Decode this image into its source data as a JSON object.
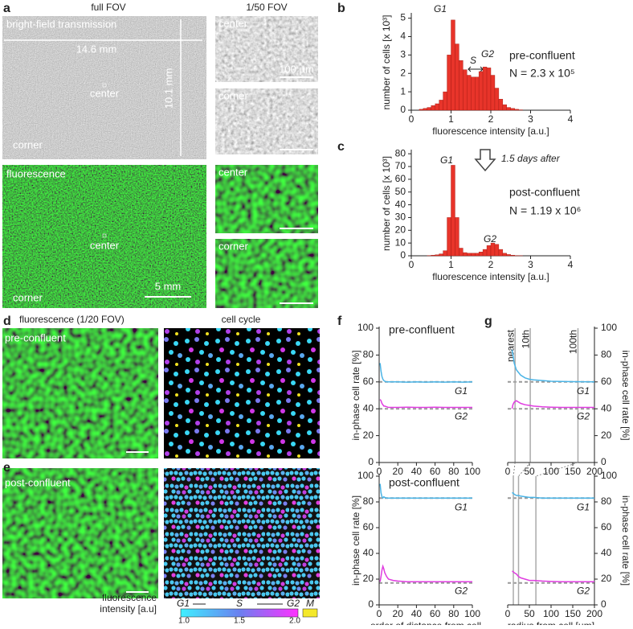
{
  "panel_a": {
    "label": "a",
    "full_fov": "full FOV",
    "small_fov": "1/50 FOV",
    "bright_field": "bright-field transmission",
    "width": "14.6 mm",
    "height": "10.1 mm",
    "center": "center",
    "corner": "corner",
    "fluorescence": "fluorescence",
    "scale_bar": "5 mm",
    "small_scale_bar": "100 µm"
  },
  "panel_d": {
    "label": "d",
    "fluorescence": "fluorescence (1/20 FOV)",
    "cell_cycle": "cell cycle",
    "condition": "pre-confluent"
  },
  "panel_e": {
    "label": "e",
    "condition": "post-confluent"
  },
  "colorbar": {
    "title": [
      "fluorescence",
      "intensity [a.u]"
    ],
    "phases": [
      "G1",
      "S",
      "G2"
    ],
    "m": "M",
    "ticks": [
      "1.0",
      "1.5",
      "2.0"
    ]
  },
  "chart_data": [
    {
      "type": "histogram",
      "panel": "b",
      "x_label": "fluorescence intensity [a.u.]",
      "y_label": "number of cells [x 10³]",
      "color": "#e8342a",
      "annotations": [
        "G1",
        "S",
        "G2"
      ],
      "condition": "pre-confluent",
      "n": "N = 2.3 x 10⁵",
      "bins": [
        0.2,
        0.3,
        0.4,
        0.5,
        0.6,
        0.7,
        0.8,
        0.9,
        1.0,
        1.1,
        1.2,
        1.3,
        1.4,
        1.5,
        1.6,
        1.7,
        1.8,
        1.9,
        2.0,
        2.1,
        2.2,
        2.3,
        2.4,
        2.5,
        2.6,
        2.7,
        2.8
      ],
      "values": [
        0.05,
        0.1,
        0.15,
        0.25,
        0.35,
        0.55,
        1.0,
        3.0,
        4.9,
        3.6,
        2.7,
        2.2,
        1.9,
        1.8,
        1.8,
        2.1,
        2.35,
        2.3,
        1.9,
        1.2,
        0.6,
        0.3,
        0.15,
        0.1,
        0.05,
        0.02
      ],
      "xlim": [
        0,
        4
      ],
      "xticks": [
        0,
        1,
        2,
        3,
        4
      ],
      "ylim": [
        0,
        5.2
      ],
      "yticks": [
        0,
        1,
        2,
        3,
        4,
        5
      ]
    },
    {
      "type": "histogram",
      "panel": "c",
      "x_label": "fluorescence intensity [a.u.]",
      "y_label": "number of cells [x 10³]",
      "color": "#e8342a",
      "annotations": [
        "G1",
        "G2"
      ],
      "caption": "1.5 days after",
      "condition": "post-confluent",
      "n": "N = 1.19 x 10⁶",
      "bins": [
        0.2,
        0.3,
        0.4,
        0.5,
        0.6,
        0.7,
        0.8,
        0.9,
        1.0,
        1.1,
        1.2,
        1.3,
        1.4,
        1.5,
        1.6,
        1.7,
        1.8,
        1.9,
        2.0,
        2.1,
        2.2,
        2.3,
        2.4,
        2.5,
        2.6,
        2.7,
        2.8
      ],
      "values": [
        0,
        0,
        0.2,
        0.5,
        0.8,
        1.5,
        4,
        30,
        71,
        30,
        6,
        2.5,
        2,
        2,
        2,
        3,
        5,
        8,
        10,
        9,
        5,
        2,
        1,
        0.5,
        0.2,
        0.1
      ],
      "xlim": [
        0,
        4
      ],
      "xticks": [
        0,
        1,
        2,
        3,
        4
      ],
      "ylim": [
        0,
        82
      ],
      "yticks": [
        0,
        10,
        20,
        30,
        40,
        50,
        60,
        70,
        80
      ]
    },
    {
      "type": "line",
      "panel": "f",
      "condition": "pre-confluent",
      "y_label": "in-phase cell rate [%]",
      "x": [
        1,
        2,
        3,
        4,
        5,
        6,
        8,
        10,
        15,
        20,
        30,
        40,
        50,
        60,
        70,
        80,
        90,
        100
      ],
      "series": [
        {
          "name": "G1",
          "color": "#4ab4e6",
          "values": [
            74,
            68,
            64,
            62,
            61,
            60.5,
            60,
            60,
            60,
            60,
            59.8,
            60,
            59.8,
            60,
            59.8,
            60,
            59.8,
            60
          ]
        },
        {
          "name": "G2",
          "color": "#e03ce0",
          "values": [
            47,
            46,
            44,
            43,
            42,
            42,
            41.5,
            41,
            41,
            41,
            41.2,
            41,
            41,
            41.2,
            41,
            41,
            41,
            41
          ]
        }
      ],
      "reference_lines": [
        60,
        40
      ],
      "xlim": [
        0,
        100
      ],
      "xticks": [
        0,
        20,
        40,
        60,
        80,
        100
      ],
      "ylim": [
        0,
        100
      ],
      "yticks": [
        0,
        20,
        40,
        60,
        80,
        100
      ]
    },
    {
      "type": "line",
      "condition": "post-confluent",
      "x_label": "order of distance from cell",
      "y_label": "in-phase cell rate [%]",
      "x": [
        1,
        2,
        3,
        4,
        5,
        6,
        8,
        10,
        15,
        20,
        30,
        40,
        50,
        60,
        70,
        80,
        90,
        100
      ],
      "series": [
        {
          "name": "G1",
          "color": "#4ab4e6",
          "values": [
            94,
            87,
            84,
            83,
            84,
            83.5,
            83,
            83,
            83,
            83,
            83,
            83,
            83,
            83,
            83,
            83,
            83,
            83
          ]
        },
        {
          "name": "G2",
          "color": "#e03ce0",
          "values": [
            18,
            22,
            27,
            30,
            28,
            25,
            22,
            20,
            19,
            18.5,
            18,
            18,
            18,
            18,
            18,
            18,
            18,
            18
          ]
        }
      ],
      "reference_lines": [
        83,
        17
      ],
      "xlim": [
        0,
        100
      ],
      "xticks": [
        0,
        20,
        40,
        60,
        80,
        100
      ],
      "ylim": [
        0,
        100
      ],
      "yticks": [
        0,
        20,
        40,
        60,
        80,
        100
      ]
    },
    {
      "type": "line",
      "panel": "g",
      "y_label": "in-phase cell rate [%]",
      "y_axis_side": "right",
      "x": [
        10,
        12,
        15,
        20,
        25,
        30,
        40,
        50,
        60,
        80,
        100,
        125,
        150,
        175,
        200
      ],
      "series": [
        {
          "name": "G1",
          "color": "#4ab4e6",
          "values": [
            84,
            80,
            74,
            69,
            67,
            65,
            63,
            62,
            61.5,
            61,
            60.5,
            60.3,
            60.2,
            60.1,
            60
          ]
        },
        {
          "name": "G2",
          "color": "#e03ce0",
          "values": [
            40,
            43,
            45,
            46,
            45,
            44,
            43,
            42.5,
            42,
            41.5,
            41.2,
            41,
            41,
            41,
            41
          ]
        }
      ],
      "markers": [
        {
          "value": 17,
          "label": "nearest"
        },
        {
          "value": 52,
          "label": "10th"
        },
        {
          "value": 162,
          "label": "100th"
        }
      ],
      "reference_lines": [
        60,
        40
      ],
      "xlim": [
        0,
        200
      ],
      "xticks": [
        0,
        50,
        100,
        150,
        200
      ],
      "ylim": [
        0,
        100
      ],
      "yticks": [
        0,
        20,
        40,
        60,
        80,
        100
      ]
    },
    {
      "type": "line",
      "x_label": "radius from cell [µm]",
      "y_label": "in-phase cell rate [%]",
      "y_axis_side": "right",
      "x": [
        10,
        12,
        15,
        20,
        25,
        30,
        40,
        50,
        60,
        80,
        100,
        125,
        150,
        175,
        200
      ],
      "series": [
        {
          "name": "G1",
          "color": "#4ab4e6",
          "values": [
            87,
            87,
            86,
            85,
            85,
            84.5,
            84,
            83.5,
            83.5,
            83,
            83,
            83,
            83,
            83,
            83
          ]
        },
        {
          "name": "G2",
          "color": "#e03ce0",
          "values": [
            26,
            26,
            25,
            24,
            22,
            21,
            20,
            19,
            19,
            18.5,
            18.2,
            18,
            18,
            18,
            18
          ]
        }
      ],
      "markers": [
        13,
        25,
        65
      ],
      "reference_lines": [
        83,
        17
      ],
      "xlim": [
        0,
        200
      ],
      "xticks": [
        0,
        50,
        100,
        150,
        200
      ],
      "ylim": [
        0,
        100
      ],
      "yticks": [
        0,
        20,
        40,
        60,
        80,
        100
      ]
    }
  ]
}
